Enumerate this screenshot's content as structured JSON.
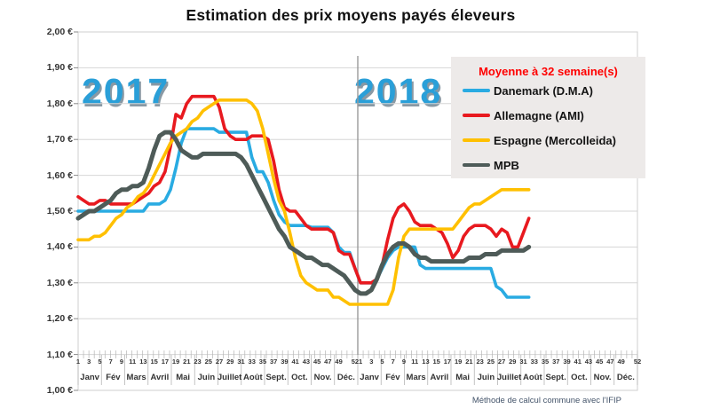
{
  "title": "Estimation des prix moyens payés éleveurs",
  "footer_note": "Méthode de calcul commune avec l'IFIP",
  "years": [
    "2017",
    "2018"
  ],
  "legend": {
    "title": "Moyenne à  32 semaine(s)",
    "items": [
      {
        "label": "Danemark (D.M.A)",
        "color": "#29abe2"
      },
      {
        "label": "Allemagne (AMI)",
        "color": "#e8191f"
      },
      {
        "label": "Espagne (Mercolleida)",
        "color": "#ffc000"
      },
      {
        "label": "MPB",
        "color": "#4e5b58"
      }
    ]
  },
  "axes": {
    "y_tick_labels": [
      "2,00 €",
      "1,90 €",
      "1,80 €",
      "1,70 €",
      "1,60 €",
      "1,50 €",
      "1,40 €",
      "1,30 €",
      "1,20 €",
      "1,10 €",
      "1,00 €"
    ],
    "week_tick_labels": [
      "1",
      "3",
      "5",
      "7",
      "9",
      "11",
      "13",
      "15",
      "17",
      "19",
      "21",
      "23",
      "25",
      "27",
      "29",
      "31",
      "33",
      "35",
      "37",
      "39",
      "41",
      "43",
      "45",
      "47",
      "49",
      "52"
    ],
    "month_labels": [
      "Janv",
      "Fév",
      "Mars",
      "Avril",
      "Mai",
      "Juin",
      "Juillet",
      "Août",
      "Sept.",
      "Oct.",
      "Nov.",
      "Déc."
    ]
  },
  "chart_data": {
    "type": "line",
    "title": "Estimation des prix moyens payés éleveurs",
    "x_unit": "week of year",
    "x_years": [
      2017,
      2018
    ],
    "weeks_2017": 52,
    "weeks_2018": 32,
    "ylim": [
      1.0,
      2.0
    ],
    "y_currency": "€",
    "grid": "horizontal only, 0.10 € steps; vertical divider between years",
    "legend_position": "upper right",
    "series": [
      {
        "name": "Danemark (D.M.A)",
        "color": "#29abe2",
        "values_2017": [
          1.5,
          1.5,
          1.5,
          1.5,
          1.5,
          1.5,
          1.5,
          1.5,
          1.5,
          1.5,
          1.5,
          1.5,
          1.5,
          1.52,
          1.52,
          1.52,
          1.53,
          1.56,
          1.62,
          1.69,
          1.73,
          1.73,
          1.73,
          1.73,
          1.73,
          1.73,
          1.72,
          1.72,
          1.72,
          1.72,
          1.72,
          1.72,
          1.65,
          1.61,
          1.61,
          1.58,
          1.53,
          1.49,
          1.47,
          1.46,
          1.46,
          1.46,
          1.46,
          1.455,
          1.455,
          1.455,
          1.455,
          1.44,
          1.4,
          1.385,
          1.385,
          1.34
        ],
        "values_2018": [
          1.3,
          1.3,
          1.3,
          1.31,
          1.34,
          1.37,
          1.39,
          1.4,
          1.4,
          1.4,
          1.4,
          1.35,
          1.34,
          1.34,
          1.34,
          1.34,
          1.34,
          1.34,
          1.34,
          1.34,
          1.34,
          1.34,
          1.34,
          1.34,
          1.34,
          1.29,
          1.28,
          1.26,
          1.26,
          1.26,
          1.26,
          1.26
        ]
      },
      {
        "name": "Allemagne (AMI)",
        "color": "#e8191f",
        "values_2017": [
          1.54,
          1.53,
          1.52,
          1.52,
          1.53,
          1.53,
          1.52,
          1.52,
          1.52,
          1.52,
          1.52,
          1.53,
          1.54,
          1.55,
          1.57,
          1.58,
          1.61,
          1.68,
          1.77,
          1.76,
          1.8,
          1.82,
          1.82,
          1.82,
          1.82,
          1.82,
          1.79,
          1.73,
          1.71,
          1.7,
          1.7,
          1.7,
          1.71,
          1.71,
          1.71,
          1.7,
          1.64,
          1.56,
          1.51,
          1.5,
          1.5,
          1.48,
          1.46,
          1.45,
          1.45,
          1.45,
          1.45,
          1.44,
          1.39,
          1.38,
          1.38,
          1.34
        ],
        "values_2018": [
          1.3,
          1.3,
          1.3,
          1.31,
          1.35,
          1.42,
          1.48,
          1.51,
          1.52,
          1.5,
          1.47,
          1.46,
          1.46,
          1.46,
          1.45,
          1.44,
          1.41,
          1.37,
          1.39,
          1.43,
          1.45,
          1.46,
          1.46,
          1.46,
          1.45,
          1.43,
          1.45,
          1.44,
          1.4,
          1.4,
          1.44,
          1.48
        ]
      },
      {
        "name": "Espagne (Mercolleida)",
        "color": "#ffc000",
        "values_2017": [
          1.42,
          1.42,
          1.42,
          1.43,
          1.43,
          1.44,
          1.46,
          1.48,
          1.49,
          1.51,
          1.52,
          1.54,
          1.55,
          1.57,
          1.6,
          1.63,
          1.66,
          1.69,
          1.71,
          1.72,
          1.73,
          1.75,
          1.76,
          1.78,
          1.79,
          1.8,
          1.81,
          1.81,
          1.81,
          1.81,
          1.81,
          1.81,
          1.8,
          1.78,
          1.73,
          1.66,
          1.59,
          1.53,
          1.5,
          1.44,
          1.37,
          1.32,
          1.3,
          1.29,
          1.28,
          1.28,
          1.28,
          1.26,
          1.26,
          1.25,
          1.24,
          1.24
        ],
        "values_2018": [
          1.24,
          1.24,
          1.24,
          1.24,
          1.24,
          1.24,
          1.28,
          1.37,
          1.43,
          1.45,
          1.45,
          1.45,
          1.45,
          1.45,
          1.45,
          1.45,
          1.45,
          1.45,
          1.47,
          1.49,
          1.51,
          1.52,
          1.52,
          1.53,
          1.54,
          1.55,
          1.56,
          1.56,
          1.56,
          1.56,
          1.56,
          1.56
        ]
      },
      {
        "name": "MPB",
        "color": "#4e5b58",
        "values_2017": [
          1.48,
          1.49,
          1.5,
          1.5,
          1.51,
          1.52,
          1.53,
          1.55,
          1.56,
          1.56,
          1.57,
          1.57,
          1.58,
          1.62,
          1.67,
          1.71,
          1.72,
          1.72,
          1.7,
          1.67,
          1.66,
          1.65,
          1.65,
          1.66,
          1.66,
          1.66,
          1.66,
          1.66,
          1.66,
          1.66,
          1.65,
          1.63,
          1.6,
          1.57,
          1.54,
          1.51,
          1.48,
          1.45,
          1.43,
          1.4,
          1.39,
          1.38,
          1.37,
          1.37,
          1.36,
          1.35,
          1.35,
          1.34,
          1.33,
          1.32,
          1.3,
          1.28
        ],
        "values_2018": [
          1.27,
          1.27,
          1.28,
          1.31,
          1.35,
          1.38,
          1.4,
          1.41,
          1.41,
          1.4,
          1.38,
          1.37,
          1.37,
          1.36,
          1.36,
          1.36,
          1.36,
          1.36,
          1.36,
          1.36,
          1.37,
          1.37,
          1.37,
          1.38,
          1.38,
          1.38,
          1.39,
          1.39,
          1.39,
          1.39,
          1.39,
          1.4
        ]
      }
    ]
  },
  "colors": {
    "grid": "#d6d6d6",
    "border": "#cfcfcf",
    "tick": "#b5b5b5",
    "divider": "#999999",
    "year_label": "#2a9fd8",
    "legend_bg": "#edeae9",
    "legend_title": "#ff0000"
  }
}
